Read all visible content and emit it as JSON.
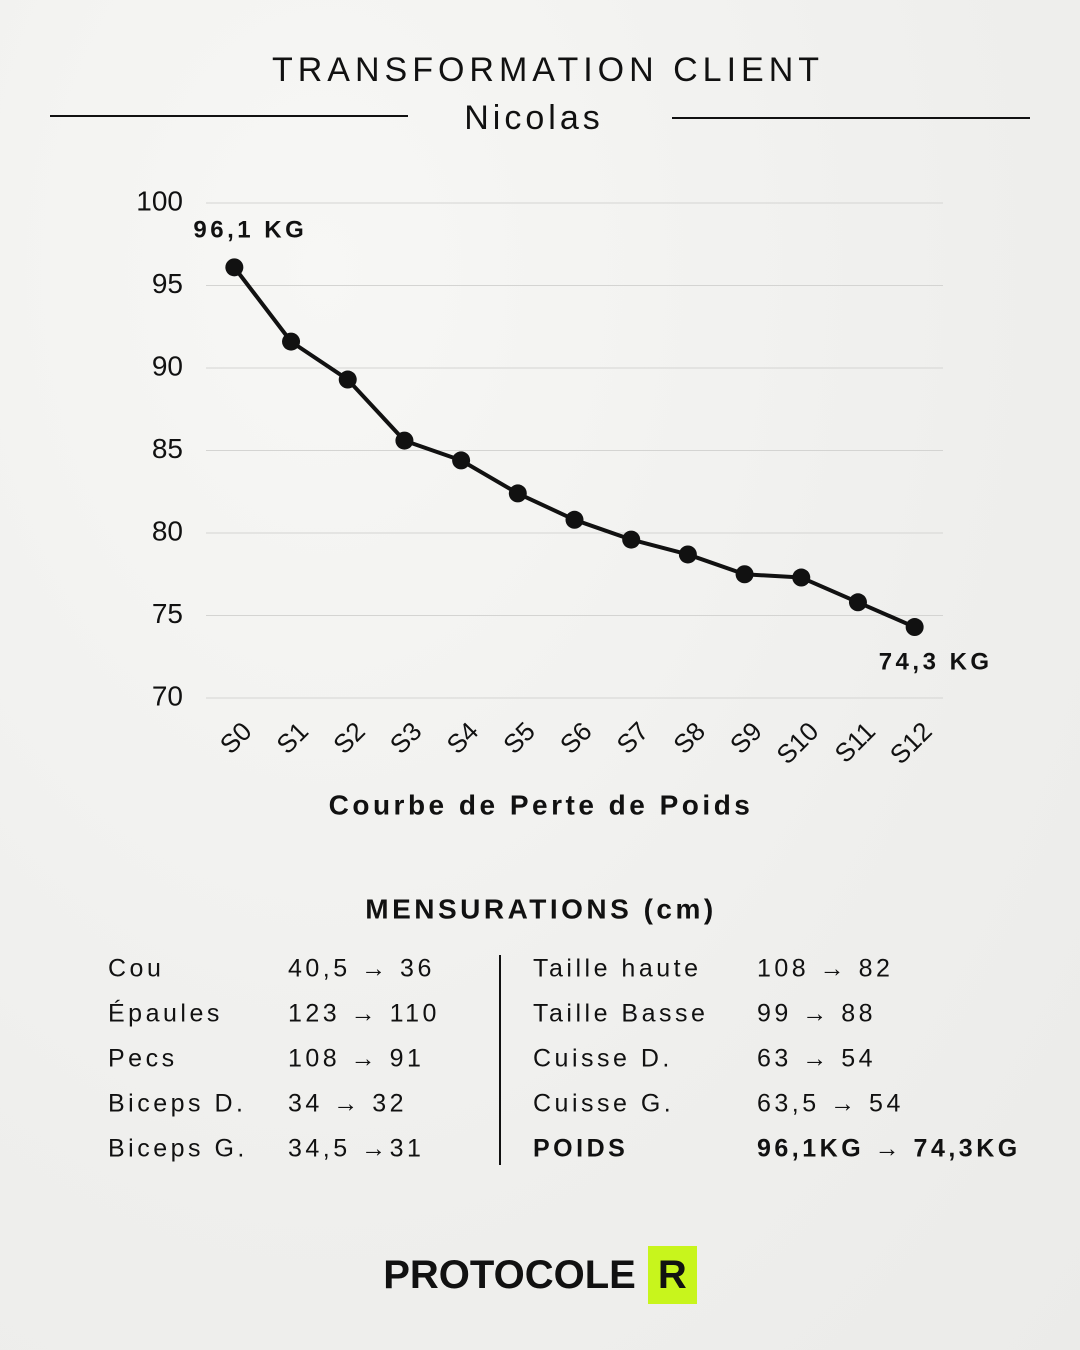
{
  "header": {
    "title": "TRANSFORMATION CLIENT",
    "subtitle": "Nicolas"
  },
  "chart_data": {
    "type": "line",
    "x_label": "Courbe de Perte de Poids",
    "categories": [
      "S0",
      "S1",
      "S2",
      "S3",
      "S4",
      "S5",
      "S6",
      "S7",
      "S8",
      "S9",
      "S10",
      "S11",
      "S12"
    ],
    "series": [
      {
        "color": "#111111",
        "values": [
          96.1,
          91.6,
          89.3,
          85.6,
          84.4,
          82.4,
          80.8,
          79.6,
          78.7,
          77.5,
          77.3,
          75.8,
          74.3
        ],
        "value_labels": [
          "96,1 KG",
          null,
          null,
          null,
          null,
          null,
          null,
          null,
          null,
          null,
          null,
          null,
          "74,3 KG"
        ]
      }
    ],
    "ylim": [
      70,
      100
    ],
    "yticks": [
      70,
      75,
      80,
      85,
      90,
      95,
      100
    ],
    "grid": true
  },
  "measurements": {
    "title": "MENSURATIONS (cm)",
    "rows": [
      [
        "Cou",
        "40,5 → 36",
        "Taille haute",
        "108 → 82"
      ],
      [
        "Épaules",
        "123 → 110",
        "Taille Basse",
        "99 → 88"
      ],
      [
        "Pecs",
        "108 → 91",
        "Cuisse D.",
        "63 → 54"
      ],
      [
        "Biceps D.",
        "34 → 32",
        "Cuisse G.",
        "63,5 → 54"
      ],
      [
        "Biceps G.",
        "34,5 →31",
        "POIDS",
        "96,1KG → 74,3KG"
      ]
    ]
  },
  "footer": {
    "brand": "PROTOCOLE",
    "badge": "R"
  }
}
